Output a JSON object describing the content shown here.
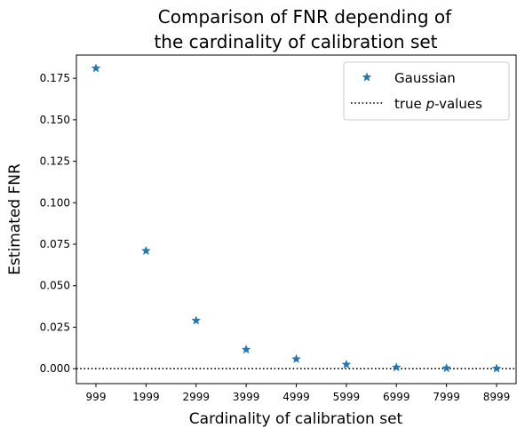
{
  "chart_data": {
    "type": "scatter",
    "title_lines": [
      "Comparison of FNR depending of",
      "the cardinality of calibration set"
    ],
    "xlabel": "Cardinality of calibration set",
    "ylabel": "Estimated FNR",
    "x": [
      999,
      1999,
      2999,
      3999,
      4999,
      5999,
      6999,
      7999,
      8999
    ],
    "x_tick_labels": [
      "999",
      "1999",
      "2999",
      "3999",
      "4999",
      "5999",
      "6999",
      "7999",
      "8999"
    ],
    "y_ticks": [
      0.0,
      0.025,
      0.05,
      0.075,
      0.1,
      0.125,
      0.15,
      0.175
    ],
    "y_tick_labels": [
      "0.000",
      "0.025",
      "0.050",
      "0.075",
      "0.100",
      "0.125",
      "0.150",
      "0.175"
    ],
    "ylim": [
      -0.009,
      0.189
    ],
    "grid": false,
    "legend_position": "top-right",
    "series": [
      {
        "name": "Gaussian",
        "marker": "star",
        "color": "#1f77b4",
        "values": [
          0.181,
          0.071,
          0.029,
          0.0115,
          0.0058,
          0.0025,
          0.0008,
          0.0003,
          0.0001
        ]
      }
    ],
    "reference_line": {
      "label_prefix": "true ",
      "label_italic": "p",
      "label_suffix": "-values",
      "y": 0.0,
      "style": "dotted",
      "color": "#000000"
    }
  }
}
